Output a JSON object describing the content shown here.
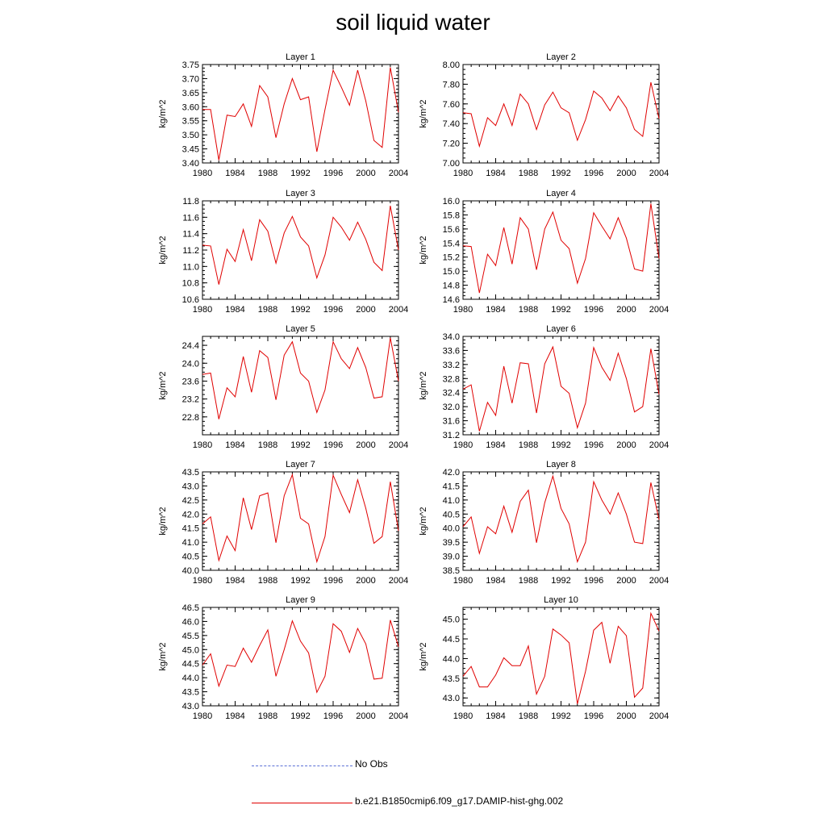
{
  "title": "soil liquid water",
  "legend": {
    "items": [
      {
        "label": "No Obs",
        "color": "#5a6fd6",
        "style": "dashed"
      },
      {
        "label": "b.e21.B1850cmip6.f09_g17.DAMIP-hist-ghg.002",
        "color": "#e00000",
        "style": "solid"
      }
    ]
  },
  "chart_data": [
    {
      "type": "line",
      "title": "Layer 1",
      "ylabel": "kg/m^2",
      "xlim": [
        1980,
        2004
      ],
      "ylim": [
        3.4,
        3.75
      ],
      "xticks": [
        1980,
        1984,
        1988,
        1992,
        1996,
        2000,
        2004
      ],
      "yticks": [
        "3.40",
        "3.45",
        "3.50",
        "3.55",
        "3.60",
        "3.65",
        "3.70",
        "3.75"
      ],
      "x": [
        1980,
        1981,
        1982,
        1983,
        1984,
        1985,
        1986,
        1987,
        1988,
        1989,
        1990,
        1991,
        1992,
        1993,
        1994,
        1995,
        1996,
        1997,
        1998,
        1999,
        2000,
        2001,
        2002,
        2003,
        2004
      ],
      "series": [
        {
          "name": "b.e21.B1850cmip6.f09_g17.DAMIP-hist-ghg.002",
          "values": [
            3.59,
            3.59,
            3.41,
            3.57,
            3.565,
            3.61,
            3.53,
            3.675,
            3.635,
            3.49,
            3.61,
            3.7,
            3.625,
            3.635,
            3.44,
            3.59,
            3.73,
            3.67,
            3.605,
            3.73,
            3.62,
            3.48,
            3.455,
            3.74,
            3.58
          ]
        }
      ]
    },
    {
      "type": "line",
      "title": "Layer 2",
      "ylabel": "kg/m^2",
      "xlim": [
        1980,
        2004
      ],
      "ylim": [
        7.0,
        8.0
      ],
      "xticks": [
        1980,
        1984,
        1988,
        1992,
        1996,
        2000,
        2004
      ],
      "yticks": [
        "7.00",
        "7.20",
        "7.40",
        "7.60",
        "7.80",
        "8.00"
      ],
      "x": [
        1980,
        1981,
        1982,
        1983,
        1984,
        1985,
        1986,
        1987,
        1988,
        1989,
        1990,
        1991,
        1992,
        1993,
        1994,
        1995,
        1996,
        1997,
        1998,
        1999,
        2000,
        2001,
        2002,
        2003,
        2004
      ],
      "series": [
        {
          "name": "b.e21.B1850cmip6.f09_g17.DAMIP-hist-ghg.002",
          "values": [
            7.51,
            7.5,
            7.17,
            7.46,
            7.38,
            7.6,
            7.38,
            7.7,
            7.6,
            7.34,
            7.59,
            7.72,
            7.56,
            7.51,
            7.23,
            7.44,
            7.73,
            7.66,
            7.53,
            7.68,
            7.56,
            7.34,
            7.27,
            7.82,
            7.45
          ]
        }
      ]
    },
    {
      "type": "line",
      "title": "Layer 3",
      "ylabel": "kg/m^2",
      "xlim": [
        1980,
        2004
      ],
      "ylim": [
        10.6,
        11.8
      ],
      "xticks": [
        1980,
        1984,
        1988,
        1992,
        1996,
        2000,
        2004
      ],
      "yticks": [
        "10.6",
        "10.8",
        "11.0",
        "11.2",
        "11.4",
        "11.6",
        "11.8"
      ],
      "x": [
        1980,
        1981,
        1982,
        1983,
        1984,
        1985,
        1986,
        1987,
        1988,
        1989,
        1990,
        1991,
        1992,
        1993,
        1994,
        1995,
        1996,
        1997,
        1998,
        1999,
        2000,
        2001,
        2002,
        2003,
        2004
      ],
      "series": [
        {
          "name": "b.e21.B1850cmip6.f09_g17.DAMIP-hist-ghg.002",
          "values": [
            11.26,
            11.25,
            10.78,
            11.21,
            11.06,
            11.45,
            11.07,
            11.57,
            11.43,
            11.04,
            11.41,
            11.61,
            11.36,
            11.25,
            10.86,
            11.14,
            11.6,
            11.48,
            11.32,
            11.54,
            11.33,
            11.05,
            10.95,
            11.74,
            11.2
          ]
        }
      ]
    },
    {
      "type": "line",
      "title": "Layer 4",
      "ylabel": "kg/m^2",
      "xlim": [
        1980,
        2004
      ],
      "ylim": [
        14.6,
        16.0
      ],
      "xticks": [
        1980,
        1984,
        1988,
        1992,
        1996,
        2000,
        2004
      ],
      "yticks": [
        "14.6",
        "14.8",
        "15.0",
        "15.2",
        "15.4",
        "15.6",
        "15.8",
        "16.0"
      ],
      "x": [
        1980,
        1981,
        1982,
        1983,
        1984,
        1985,
        1986,
        1987,
        1988,
        1989,
        1990,
        1991,
        1992,
        1993,
        1994,
        1995,
        1996,
        1997,
        1998,
        1999,
        2000,
        2001,
        2002,
        2003,
        2004
      ],
      "series": [
        {
          "name": "b.e21.B1850cmip6.f09_g17.DAMIP-hist-ghg.002",
          "values": [
            15.36,
            15.35,
            14.69,
            15.24,
            15.08,
            15.62,
            15.1,
            15.76,
            15.6,
            15.02,
            15.6,
            15.84,
            15.44,
            15.32,
            14.83,
            15.18,
            15.83,
            15.64,
            15.46,
            15.76,
            15.47,
            15.03,
            15.0,
            15.96,
            15.18
          ]
        }
      ]
    },
    {
      "type": "line",
      "title": "Layer 5",
      "ylabel": "kg/m^2",
      "xlim": [
        1980,
        2004
      ],
      "ylim": [
        22.4,
        24.6
      ],
      "xticks": [
        1980,
        1984,
        1988,
        1992,
        1996,
        2000,
        2004
      ],
      "yticks": [
        "22.8",
        "23.2",
        "23.6",
        "24.0",
        "24.4"
      ],
      "x": [
        1980,
        1981,
        1982,
        1983,
        1984,
        1985,
        1986,
        1987,
        1988,
        1989,
        1990,
        1991,
        1992,
        1993,
        1994,
        1995,
        1996,
        1997,
        1998,
        1999,
        2000,
        2001,
        2002,
        2003,
        2004
      ],
      "series": [
        {
          "name": "b.e21.B1850cmip6.f09_g17.DAMIP-hist-ghg.002",
          "values": [
            23.75,
            23.78,
            22.75,
            23.45,
            23.25,
            24.15,
            23.35,
            24.28,
            24.13,
            23.18,
            24.18,
            24.48,
            23.78,
            23.6,
            22.9,
            23.4,
            24.48,
            24.1,
            23.88,
            24.35,
            23.9,
            23.22,
            23.25,
            24.57,
            23.6
          ]
        }
      ]
    },
    {
      "type": "line",
      "title": "Layer 6",
      "ylabel": "kg/m^2",
      "xlim": [
        1980,
        2004
      ],
      "ylim": [
        31.2,
        34.0
      ],
      "xticks": [
        1980,
        1984,
        1988,
        1992,
        1996,
        2000,
        2004
      ],
      "yticks": [
        "31.2",
        "31.6",
        "32.0",
        "32.4",
        "32.8",
        "33.2",
        "33.6",
        "34.0"
      ],
      "x": [
        1980,
        1981,
        1982,
        1983,
        1984,
        1985,
        1986,
        1987,
        1988,
        1989,
        1990,
        1991,
        1992,
        1993,
        1994,
        1995,
        1996,
        1997,
        1998,
        1999,
        2000,
        2001,
        2002,
        2003,
        2004
      ],
      "series": [
        {
          "name": "b.e21.B1850cmip6.f09_g17.DAMIP-hist-ghg.002",
          "values": [
            32.5,
            32.62,
            31.3,
            32.12,
            31.75,
            33.15,
            32.1,
            33.25,
            33.22,
            31.82,
            33.22,
            33.7,
            32.58,
            32.38,
            31.4,
            32.1,
            33.68,
            33.12,
            32.75,
            33.52,
            32.8,
            31.85,
            32.0,
            33.65,
            32.35
          ]
        }
      ]
    },
    {
      "type": "line",
      "title": "Layer 7",
      "ylabel": "kg/m^2",
      "xlim": [
        1980,
        2004
      ],
      "ylim": [
        40.0,
        43.5
      ],
      "xticks": [
        1980,
        1984,
        1988,
        1992,
        1996,
        2000,
        2004
      ],
      "yticks": [
        "40.0",
        "40.5",
        "41.0",
        "41.5",
        "42.0",
        "42.5",
        "43.0",
        "43.5"
      ],
      "x": [
        1980,
        1981,
        1982,
        1983,
        1984,
        1985,
        1986,
        1987,
        1988,
        1989,
        1990,
        1991,
        1992,
        1993,
        1994,
        1995,
        1996,
        1997,
        1998,
        1999,
        2000,
        2001,
        2002,
        2003,
        2004
      ],
      "series": [
        {
          "name": "b.e21.B1850cmip6.f09_g17.DAMIP-hist-ghg.002",
          "values": [
            41.65,
            41.9,
            40.35,
            41.22,
            40.7,
            42.58,
            41.45,
            42.65,
            42.75,
            40.98,
            42.65,
            43.4,
            41.85,
            41.65,
            40.3,
            41.2,
            43.38,
            42.7,
            42.05,
            43.22,
            42.2,
            40.96,
            41.2,
            43.15,
            41.4
          ]
        }
      ]
    },
    {
      "type": "line",
      "title": "Layer 8",
      "ylabel": "kg/m^2",
      "xlim": [
        1980,
        2004
      ],
      "ylim": [
        38.5,
        42.0
      ],
      "xticks": [
        1980,
        1984,
        1988,
        1992,
        1996,
        2000,
        2004
      ],
      "yticks": [
        "38.5",
        "39.0",
        "39.5",
        "40.0",
        "40.5",
        "41.0",
        "41.5",
        "42.0"
      ],
      "x": [
        1980,
        1981,
        1982,
        1983,
        1984,
        1985,
        1986,
        1987,
        1988,
        1989,
        1990,
        1991,
        1992,
        1993,
        1994,
        1995,
        1996,
        1997,
        1998,
        1999,
        2000,
        2001,
        2002,
        2003,
        2004
      ],
      "series": [
        {
          "name": "b.e21.B1850cmip6.f09_g17.DAMIP-hist-ghg.002",
          "values": [
            40.05,
            40.4,
            39.1,
            40.05,
            39.8,
            40.78,
            39.85,
            40.95,
            41.35,
            39.48,
            40.9,
            41.85,
            40.7,
            40.15,
            38.8,
            39.5,
            41.65,
            41.0,
            40.5,
            41.25,
            40.5,
            39.5,
            39.45,
            41.62,
            40.3
          ]
        }
      ]
    },
    {
      "type": "line",
      "title": "Layer 9",
      "ylabel": "kg/m^2",
      "xlim": [
        1980,
        2004
      ],
      "ylim": [
        43.0,
        46.5
      ],
      "xticks": [
        1980,
        1984,
        1988,
        1992,
        1996,
        2000,
        2004
      ],
      "yticks": [
        "43.0",
        "43.5",
        "44.0",
        "44.5",
        "45.0",
        "45.5",
        "46.0",
        "46.5"
      ],
      "x": [
        1980,
        1981,
        1982,
        1983,
        1984,
        1985,
        1986,
        1987,
        1988,
        1989,
        1990,
        1991,
        1992,
        1993,
        1994,
        1995,
        1996,
        1997,
        1998,
        1999,
        2000,
        2001,
        2002,
        2003,
        2004
      ],
      "series": [
        {
          "name": "b.e21.B1850cmip6.f09_g17.DAMIP-hist-ghg.002",
          "values": [
            44.45,
            44.85,
            43.7,
            44.45,
            44.4,
            45.05,
            44.55,
            45.15,
            45.7,
            44.05,
            45.0,
            46.02,
            45.3,
            44.88,
            43.48,
            44.05,
            45.92,
            45.65,
            44.9,
            45.75,
            45.2,
            43.95,
            43.98,
            46.05,
            45.1
          ]
        }
      ]
    },
    {
      "type": "line",
      "title": "Layer 10",
      "ylabel": "kg/m^2",
      "xlim": [
        1980,
        2004
      ],
      "ylim": [
        42.8,
        45.3
      ],
      "xticks": [
        1980,
        1984,
        1988,
        1992,
        1996,
        2000,
        2004
      ],
      "yticks": [
        "43.0",
        "43.5",
        "44.0",
        "44.5",
        "45.0"
      ],
      "x": [
        1980,
        1981,
        1982,
        1983,
        1984,
        1985,
        1986,
        1987,
        1988,
        1989,
        1990,
        1991,
        1992,
        1993,
        1994,
        1995,
        1996,
        1997,
        1998,
        1999,
        2000,
        2001,
        2002,
        2003,
        2004
      ],
      "series": [
        {
          "name": "b.e21.B1850cmip6.f09_g17.DAMIP-hist-ghg.002",
          "values": [
            43.55,
            43.8,
            43.28,
            43.28,
            43.58,
            44.02,
            43.82,
            43.82,
            44.32,
            43.1,
            43.55,
            44.75,
            44.6,
            44.4,
            42.85,
            43.68,
            44.72,
            44.92,
            43.88,
            44.82,
            44.58,
            43.02,
            43.25,
            45.15,
            44.7
          ]
        }
      ]
    }
  ]
}
